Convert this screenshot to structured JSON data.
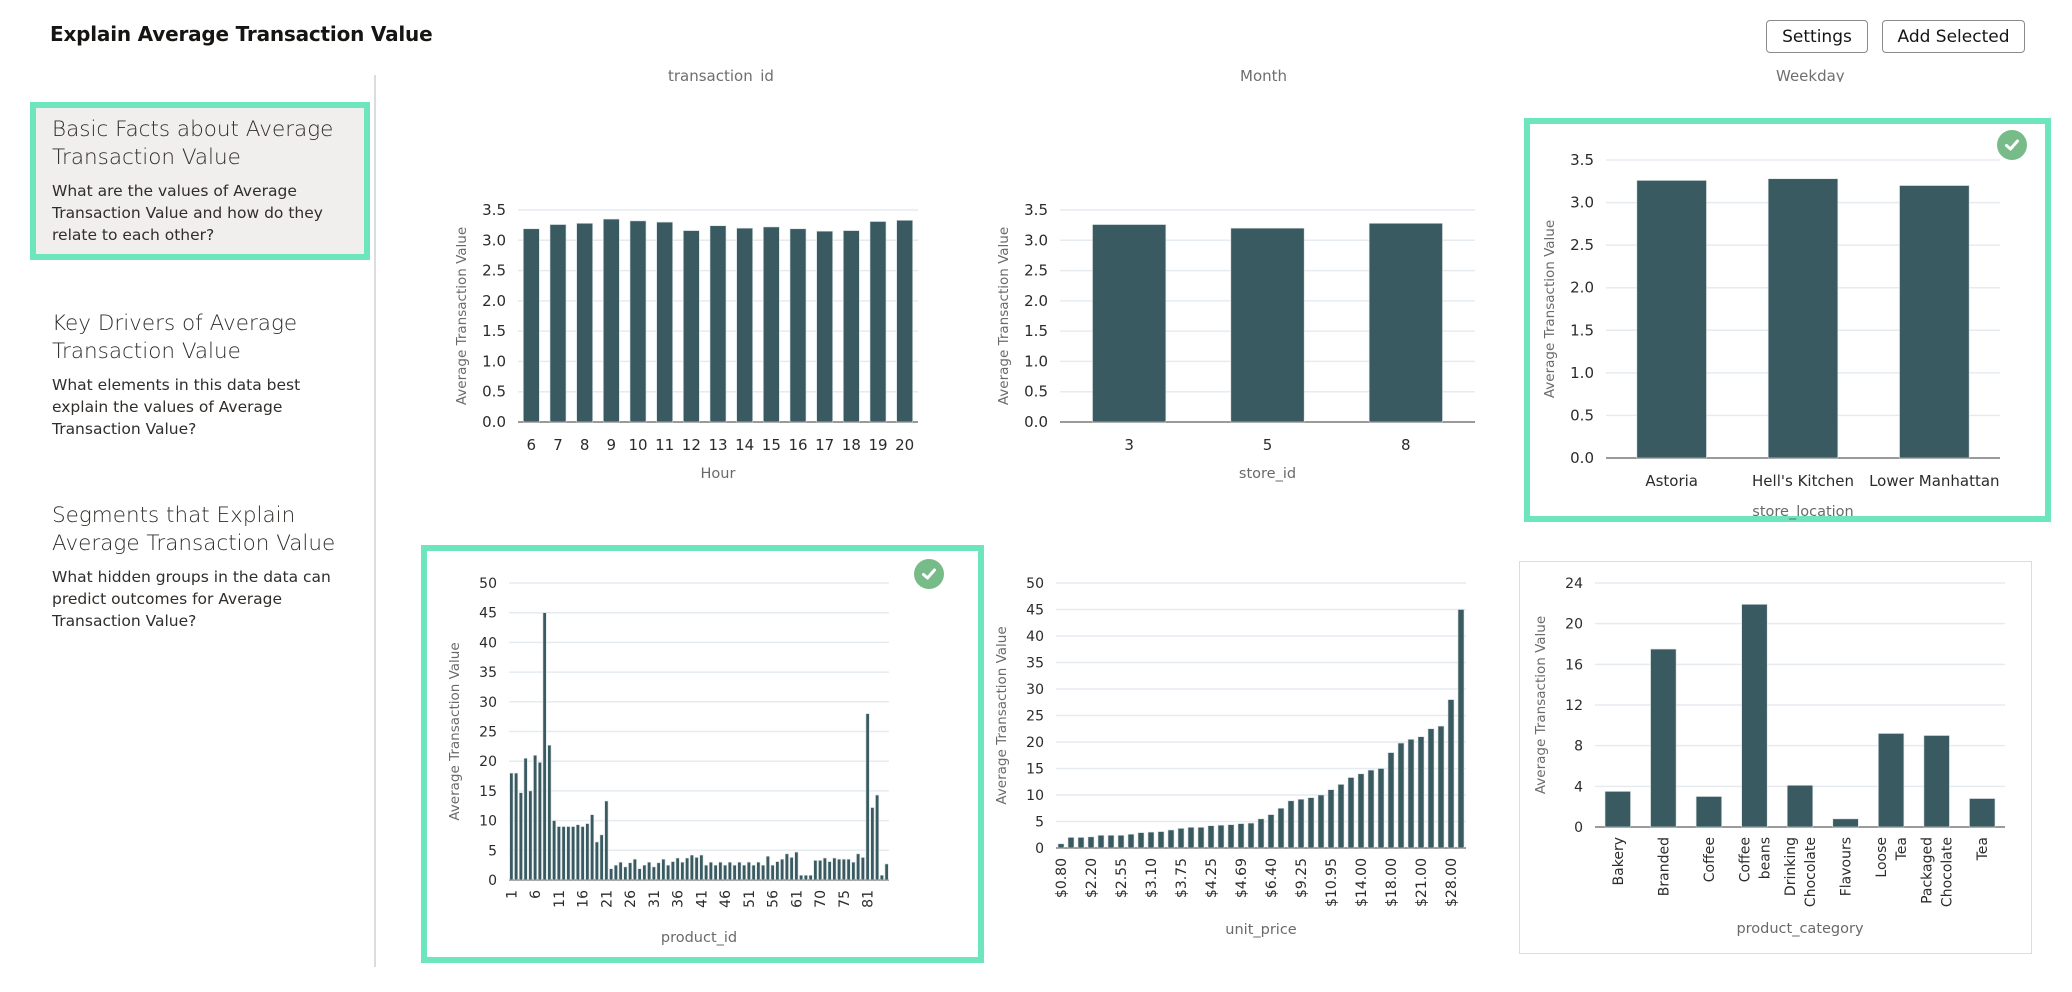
{
  "header": {
    "title": "Explain Average Transaction Value",
    "settings_label": "Settings",
    "add_selected_label": "Add Selected"
  },
  "sidebar": {
    "items": [
      {
        "title": "Basic Facts about Average Transaction Value",
        "description": "What are the values of Average Transaction Value and how do they relate to each other?",
        "active": true
      },
      {
        "title": "Key Drivers of Average Transaction Value",
        "description": "What elements in this data best explain the values of Average Transaction Value?",
        "active": false
      },
      {
        "title": "Segments that Explain Average Transaction Value",
        "description": "What hidden groups in the data can predict outcomes for Average Transaction Value?",
        "active": false
      }
    ]
  },
  "scrolled_labels": [
    "transaction_id",
    "Month",
    "Weekday"
  ],
  "colors": {
    "bar": "#385a60",
    "selection_border": "#6ee6bd",
    "check_badge": "#77bb88",
    "active_nav_bg": "#f0efed"
  },
  "chart_data": [
    {
      "id": "hour",
      "type": "bar",
      "selected": false,
      "xlabel": "Hour",
      "ylabel": "Average Transaction Value",
      "ylim": [
        0,
        3.5
      ],
      "yticks": [
        "0.0",
        "0.5",
        "1.0",
        "1.5",
        "2.0",
        "2.5",
        "3.0",
        "3.5"
      ],
      "ytick_values": [
        0,
        0.5,
        1.0,
        1.5,
        2.0,
        2.5,
        3.0,
        3.5
      ],
      "grid": true,
      "categories": [
        "6",
        "7",
        "8",
        "9",
        "10",
        "11",
        "12",
        "13",
        "14",
        "15",
        "16",
        "17",
        "18",
        "19",
        "20"
      ],
      "tick_labels": [
        "6",
        "7",
        "8",
        "9",
        "10",
        "11",
        "12",
        "13",
        "14",
        "15",
        "16",
        "17",
        "18",
        "19",
        "20"
      ],
      "values": [
        3.19,
        3.26,
        3.28,
        3.35,
        3.32,
        3.3,
        3.16,
        3.24,
        3.2,
        3.22,
        3.19,
        3.15,
        3.16,
        3.31,
        3.33
      ]
    },
    {
      "id": "store_id",
      "type": "bar",
      "selected": false,
      "xlabel": "store_id",
      "ylabel": "Average Transaction Value",
      "ylim": [
        0,
        3.5
      ],
      "yticks": [
        "0.0",
        "0.5",
        "1.0",
        "1.5",
        "2.0",
        "2.5",
        "3.0",
        "3.5"
      ],
      "ytick_values": [
        0,
        0.5,
        1.0,
        1.5,
        2.0,
        2.5,
        3.0,
        3.5
      ],
      "grid": true,
      "categories": [
        "3",
        "5",
        "8"
      ],
      "tick_labels": [
        "3",
        "5",
        "8"
      ],
      "values": [
        3.26,
        3.2,
        3.28
      ]
    },
    {
      "id": "store_location",
      "type": "bar",
      "selected": true,
      "xlabel": "store_location",
      "ylabel": "Average Transaction Value",
      "ylim": [
        0,
        3.5
      ],
      "yticks": [
        "0.0",
        "0.5",
        "1.0",
        "1.5",
        "2.0",
        "2.5",
        "3.0",
        "3.5"
      ],
      "ytick_values": [
        0,
        0.5,
        1.0,
        1.5,
        2.0,
        2.5,
        3.0,
        3.5
      ],
      "grid": true,
      "categories": [
        "Astoria",
        "Hell's Kitchen",
        "Lower Manhattan"
      ],
      "tick_labels": [
        "Astoria",
        "Hell's Kitchen",
        "Lower Manhattan"
      ],
      "values": [
        3.26,
        3.28,
        3.2
      ]
    },
    {
      "id": "product_id",
      "type": "bar",
      "selected": true,
      "xlabel": "product_id",
      "ylabel": "Average Transaction Value",
      "ylim": [
        0,
        50
      ],
      "yticks": [
        "0",
        "5",
        "10",
        "15",
        "20",
        "25",
        "30",
        "35",
        "40",
        "45",
        "50"
      ],
      "ytick_values": [
        0,
        5,
        10,
        15,
        20,
        25,
        30,
        35,
        40,
        45,
        50
      ],
      "grid": true,
      "tick_every": 5,
      "tick_labels": [
        "1",
        "6",
        "11",
        "16",
        "21",
        "26",
        "31",
        "36",
        "41",
        "46",
        "51",
        "56",
        "61",
        "70",
        "75",
        "81"
      ],
      "values": [
        18,
        18,
        14.7,
        20.5,
        15,
        21,
        19.8,
        45,
        22.7,
        10,
        9,
        9,
        9,
        9,
        9.3,
        9,
        9.5,
        11,
        6.4,
        7.6,
        13.3,
        1.9,
        2.5,
        3.0,
        2.2,
        2.9,
        3.5,
        1.9,
        2.5,
        3.0,
        2.2,
        2.9,
        3.5,
        2.5,
        3.1,
        3.7,
        3.0,
        3.7,
        4.2,
        3.8,
        4.2,
        2.5,
        3.0,
        2.5,
        3.0,
        2.5,
        3.0,
        2.5,
        3.0,
        2.5,
        3.0,
        2.5,
        3.0,
        2.5,
        4.0,
        2.5,
        3.1,
        3.5,
        4.4,
        3.8,
        4.7,
        0.8,
        0.8,
        0.8,
        3.3,
        3.3,
        3.7,
        3.1,
        3.7,
        3.5,
        3.5,
        3.5,
        3.0,
        4.4,
        3.8,
        28,
        12.2,
        14.3,
        0.8,
        2.7
      ]
    },
    {
      "id": "unit_price",
      "type": "bar",
      "selected": false,
      "xlabel": "unit_price",
      "ylabel": "Average Transaction Value",
      "ylim": [
        0,
        50
      ],
      "yticks": [
        "0",
        "5",
        "10",
        "15",
        "20",
        "25",
        "30",
        "35",
        "40",
        "45",
        "50"
      ],
      "ytick_values": [
        0,
        5,
        10,
        15,
        20,
        25,
        30,
        35,
        40,
        45,
        50
      ],
      "grid": true,
      "tick_every": 3,
      "tick_labels": [
        "$0.80",
        "$2.20",
        "$2.55",
        "$3.10",
        "$3.75",
        "$4.25",
        "$4.69",
        "$6.40",
        "$9.25",
        "$10.95",
        "$14.00",
        "$18.00",
        "$21.00",
        "$28.00"
      ],
      "values": [
        0.8,
        2.0,
        2.0,
        2.1,
        2.4,
        2.4,
        2.4,
        2.6,
        2.9,
        3.0,
        3.1,
        3.4,
        3.7,
        3.9,
        3.9,
        4.2,
        4.3,
        4.4,
        4.6,
        4.7,
        5.5,
        6.3,
        7.5,
        8.9,
        9.2,
        9.5,
        10.0,
        11.0,
        12.0,
        13.3,
        14.0,
        14.7,
        15.0,
        18.0,
        19.8,
        20.5,
        21.0,
        22.5,
        23.0,
        28.0,
        45.0
      ]
    },
    {
      "id": "product_category",
      "type": "bar",
      "selected": false,
      "xlabel": "product_category",
      "ylabel": "Average Transaction Value",
      "ylim": [
        0,
        24
      ],
      "yticks": [
        "0",
        "4",
        "8",
        "12",
        "16",
        "20",
        "24"
      ],
      "ytick_values": [
        0,
        4,
        8,
        12,
        16,
        20,
        24
      ],
      "grid": true,
      "categories": [
        "Bakery",
        "Branded",
        "Coffee",
        "Coffee beans",
        "Drinking Chocolate",
        "Flavours",
        "Loose Tea",
        "Packaged Chocolate",
        "Tea"
      ],
      "tick_labels": [
        "Bakery",
        "Branded",
        "Coffee",
        "Coffee beans",
        "Drinking Chocolate",
        "Flavours",
        "Loose Tea",
        "Packaged Chocolate",
        "Tea"
      ],
      "values": [
        3.5,
        17.5,
        3.0,
        21.9,
        4.1,
        0.8,
        9.2,
        9.0,
        2.8
      ]
    }
  ]
}
